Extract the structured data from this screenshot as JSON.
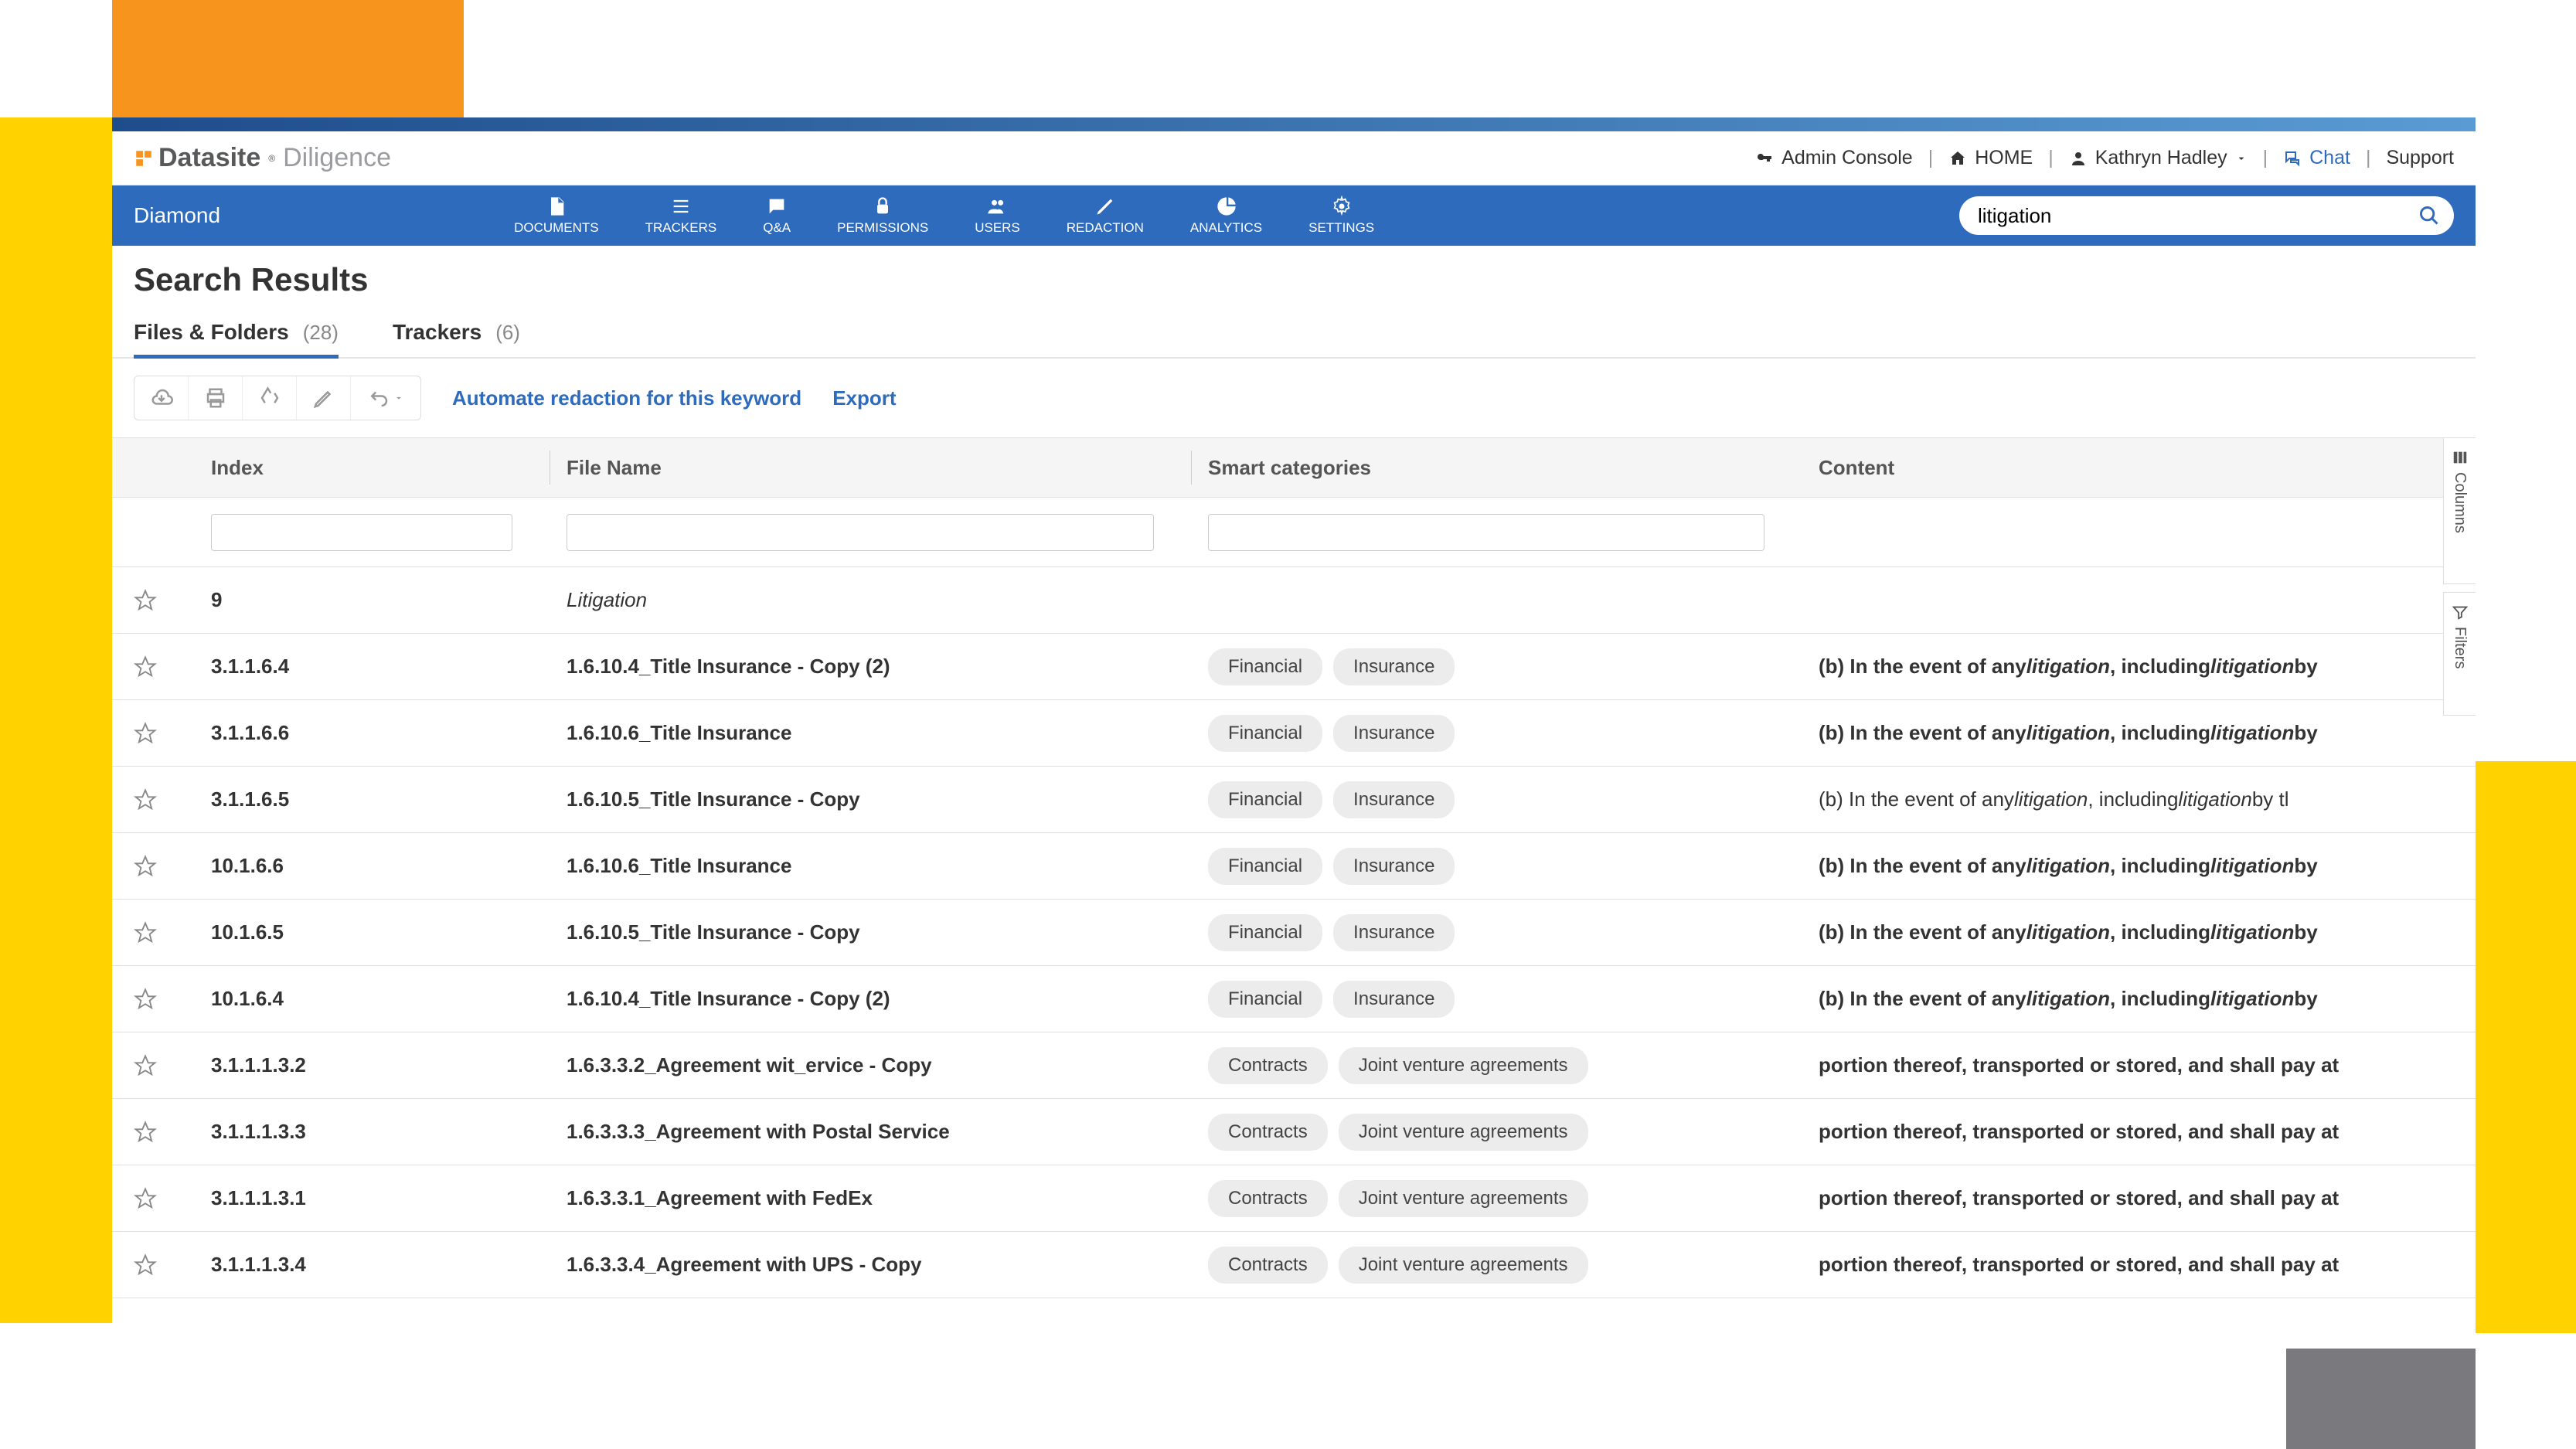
{
  "brand": {
    "name": "Datasite",
    "sub": "Diligence"
  },
  "top_links": {
    "admin": "Admin Console",
    "home": "HOME",
    "user": "Kathryn Hadley",
    "chat": "Chat",
    "support": "Support"
  },
  "nav": {
    "project": "Diamond",
    "items": [
      {
        "label": "DOCUMENTS"
      },
      {
        "label": "TRACKERS"
      },
      {
        "label": "Q&A"
      },
      {
        "label": "PERMISSIONS"
      },
      {
        "label": "USERS"
      },
      {
        "label": "REDACTION"
      },
      {
        "label": "ANALYTICS"
      },
      {
        "label": "SETTINGS"
      }
    ],
    "search_value": "litigation"
  },
  "page": {
    "title": "Search Results"
  },
  "tabs": [
    {
      "label": "Files & Folders",
      "count": "(28)",
      "active": true
    },
    {
      "label": "Trackers",
      "count": "(6)",
      "active": false
    }
  ],
  "toolbar": {
    "automate": "Automate redaction for this keyword",
    "export": "Export"
  },
  "table": {
    "columns": {
      "index": "Index",
      "filename": "File Name",
      "smart": "Smart categories",
      "content": "Content"
    },
    "rows": [
      {
        "index": "9",
        "filename": "Litigation",
        "italic": true,
        "chips": [],
        "content": "",
        "content_plain": true
      },
      {
        "index": "3.1.1.6.4",
        "filename": "1.6.10.4_Title Insurance - Copy (2)",
        "chips": [
          "Financial",
          "Insurance"
        ],
        "content": "(b) In the event of any <em>litigation</em> , including <em>litigation</em>  by"
      },
      {
        "index": "3.1.1.6.6",
        "filename": "1.6.10.6_Title Insurance",
        "chips": [
          "Financial",
          "Insurance"
        ],
        "content": "(b) In the event of any <em>litigation</em> , including <em>litigation</em>  by"
      },
      {
        "index": "3.1.1.6.5",
        "filename": "1.6.10.5_Title Insurance - Copy",
        "chips": [
          "Financial",
          "Insurance"
        ],
        "content": "(b) In the event of any <em>litigation</em> , including <em>litigation</em>  by tl",
        "content_plain": true
      },
      {
        "index": "10.1.6.6",
        "filename": "1.6.10.6_Title Insurance",
        "chips": [
          "Financial",
          "Insurance"
        ],
        "content": "(b) In the event of any <em>litigation</em> , including <em>litigation</em>  by"
      },
      {
        "index": "10.1.6.5",
        "filename": "1.6.10.5_Title Insurance - Copy",
        "chips": [
          "Financial",
          "Insurance"
        ],
        "content": "(b) In the event of any <em>litigation</em> , including <em>litigation</em>  by"
      },
      {
        "index": "10.1.6.4",
        "filename": "1.6.10.4_Title Insurance - Copy (2)",
        "chips": [
          "Financial",
          "Insurance"
        ],
        "content": "(b) In the event of any <em>litigation</em> , including <em>litigation</em>  by"
      },
      {
        "index": "3.1.1.1.3.2",
        "filename": "1.6.3.3.2_Agreement wit_ervice - Copy",
        "chips": [
          "Contracts",
          "Joint venture agreements"
        ],
        "content": "portion thereof, transported or stored, and shall pay at"
      },
      {
        "index": "3.1.1.1.3.3",
        "filename": "1.6.3.3.3_Agreement with Postal Service",
        "chips": [
          "Contracts",
          "Joint venture agreements"
        ],
        "content": "portion thereof, transported or stored, and shall pay at"
      },
      {
        "index": "3.1.1.1.3.1",
        "filename": "1.6.3.3.1_Agreement with FedEx",
        "chips": [
          "Contracts",
          "Joint venture agreements"
        ],
        "content": "portion thereof, transported or stored, and shall pay at"
      },
      {
        "index": "3.1.1.1.3.4",
        "filename": "1.6.3.3.4_Agreement with UPS - Copy",
        "chips": [
          "Contracts",
          "Joint venture agreements"
        ],
        "content": "portion thereof, transported or stored, and shall pay at"
      }
    ]
  },
  "side": {
    "columns": "Columns",
    "filters": "Filters"
  },
  "colors": {
    "orange": "#f7941d",
    "yellow": "#ffd200",
    "gray": "#7a7a7e",
    "brand_blue": "#2e6bbd"
  }
}
